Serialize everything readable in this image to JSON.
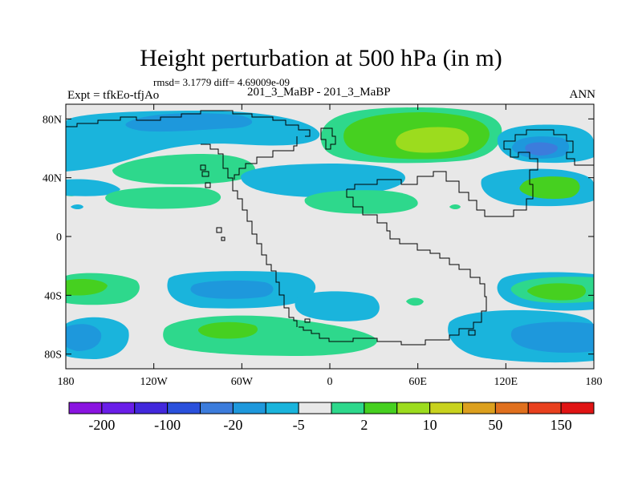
{
  "figure": {
    "title": "Height perturbation at 500 hPa (in m)",
    "stats_text": "rmsd= 3.1779  diff= 4.69009e-09",
    "left_label": "Expt = tfkEo-tfjAo",
    "center_label": "201_3_MaBP - 201_3_MaBP",
    "right_label": "ANN"
  },
  "map": {
    "lon_range": [
      -180,
      180
    ],
    "lat_range": [
      -90,
      90
    ],
    "x_ticks": [
      {
        "lon": -180,
        "label": "180"
      },
      {
        "lon": -120,
        "label": "120W"
      },
      {
        "lon": -60,
        "label": "60W"
      },
      {
        "lon": 0,
        "label": "0"
      },
      {
        "lon": 60,
        "label": "60E"
      },
      {
        "lon": 120,
        "label": "120E"
      },
      {
        "lon": 180,
        "label": "180"
      }
    ],
    "y_ticks": [
      {
        "lat": 80,
        "label": "80N"
      },
      {
        "lat": 40,
        "label": "40N"
      },
      {
        "lat": 0,
        "label": "0"
      },
      {
        "lat": -40,
        "label": "40S"
      },
      {
        "lat": -80,
        "label": "80S"
      }
    ],
    "background_color": "#e8e8e8"
  },
  "colorbar": {
    "colors": [
      "#8a14e0",
      "#6a1ee8",
      "#4228dc",
      "#2a50dc",
      "#3c7cdc",
      "#1e98dc",
      "#1ab4dc",
      "#e8e8e8",
      "#2ed88c",
      "#46d020",
      "#9cdc1e",
      "#c8d21e",
      "#dca01e",
      "#e0701e",
      "#e8401e",
      "#e01414"
    ],
    "labels": [
      {
        "index": 1,
        "text": "-200"
      },
      {
        "index": 3,
        "text": "-100"
      },
      {
        "index": 5,
        "text": "-20"
      },
      {
        "index": 7,
        "text": "-5"
      },
      {
        "index": 9,
        "text": "2"
      },
      {
        "index": 11,
        "text": "10"
      },
      {
        "index": 13,
        "text": "50"
      },
      {
        "index": 15,
        "text": "150"
      }
    ]
  }
}
